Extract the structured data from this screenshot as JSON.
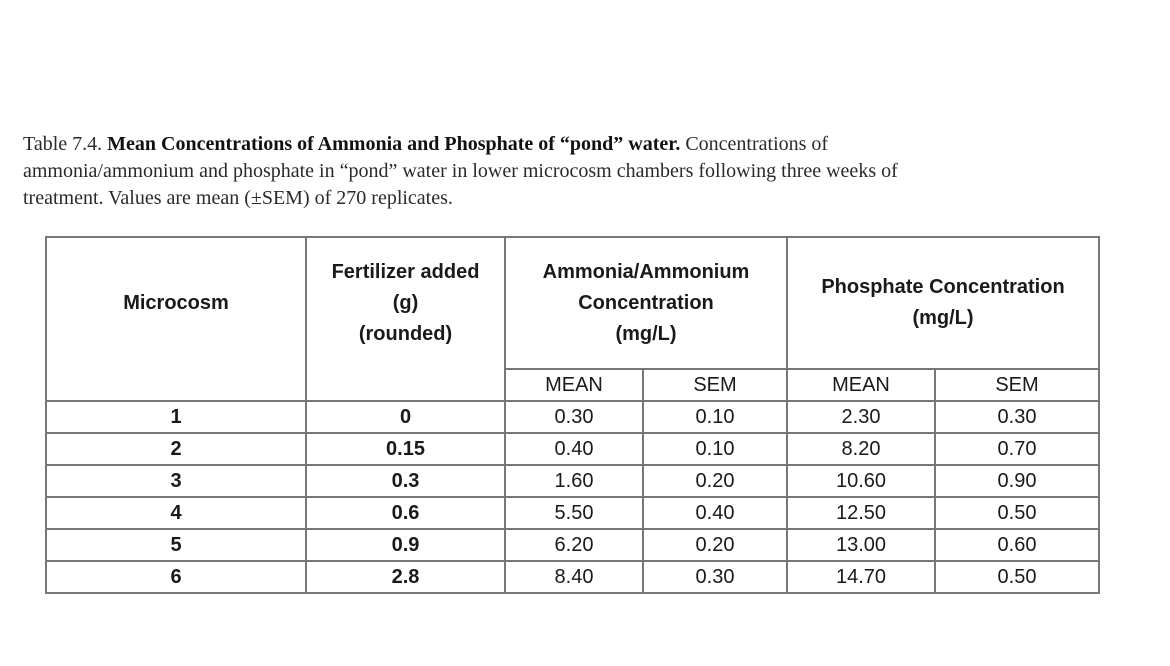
{
  "caption": {
    "label": "Table 7.4. ",
    "title": "Mean Concentrations of Ammonia and Phosphate of “pond” water.",
    "body_line1": " Concentrations of",
    "body_line2": "ammonia/ammonium and phosphate in “pond” water in lower microcosm chambers following three weeks of",
    "body_line3": "treatment. Values are mean (±SEM) of 270 replicates."
  },
  "table": {
    "headers": {
      "microcosm": "Microcosm",
      "fertilizer_l1": "Fertilizer added",
      "fertilizer_l2": "(g)",
      "fertilizer_l3": "(rounded)",
      "ammonia_l1": "Ammonia/Ammonium",
      "ammonia_l2": "Concentration",
      "ammonia_l3": "(mg/L)",
      "phosphate_l1": "Phosphate Concentration",
      "phosphate_l2": "(mg/L)",
      "mean": "MEAN",
      "sem": "SEM"
    },
    "rows": [
      {
        "microcosm": "1",
        "fertilizer": "0",
        "amm_mean": "0.30",
        "amm_sem": "0.10",
        "phos_mean": "2.30",
        "phos_sem": "0.30"
      },
      {
        "microcosm": "2",
        "fertilizer": "0.15",
        "amm_mean": "0.40",
        "amm_sem": "0.10",
        "phos_mean": "8.20",
        "phos_sem": "0.70"
      },
      {
        "microcosm": "3",
        "fertilizer": "0.3",
        "amm_mean": "1.60",
        "amm_sem": "0.20",
        "phos_mean": "10.60",
        "phos_sem": "0.90"
      },
      {
        "microcosm": "4",
        "fertilizer": "0.6",
        "amm_mean": "5.50",
        "amm_sem": "0.40",
        "phos_mean": "12.50",
        "phos_sem": "0.50"
      },
      {
        "microcosm": "5",
        "fertilizer": "0.9",
        "amm_mean": "6.20",
        "amm_sem": "0.20",
        "phos_mean": "13.00",
        "phos_sem": "0.60"
      },
      {
        "microcosm": "6",
        "fertilizer": "2.8",
        "amm_mean": "8.40",
        "amm_sem": "0.30",
        "phos_mean": "14.70",
        "phos_sem": "0.50"
      }
    ]
  }
}
